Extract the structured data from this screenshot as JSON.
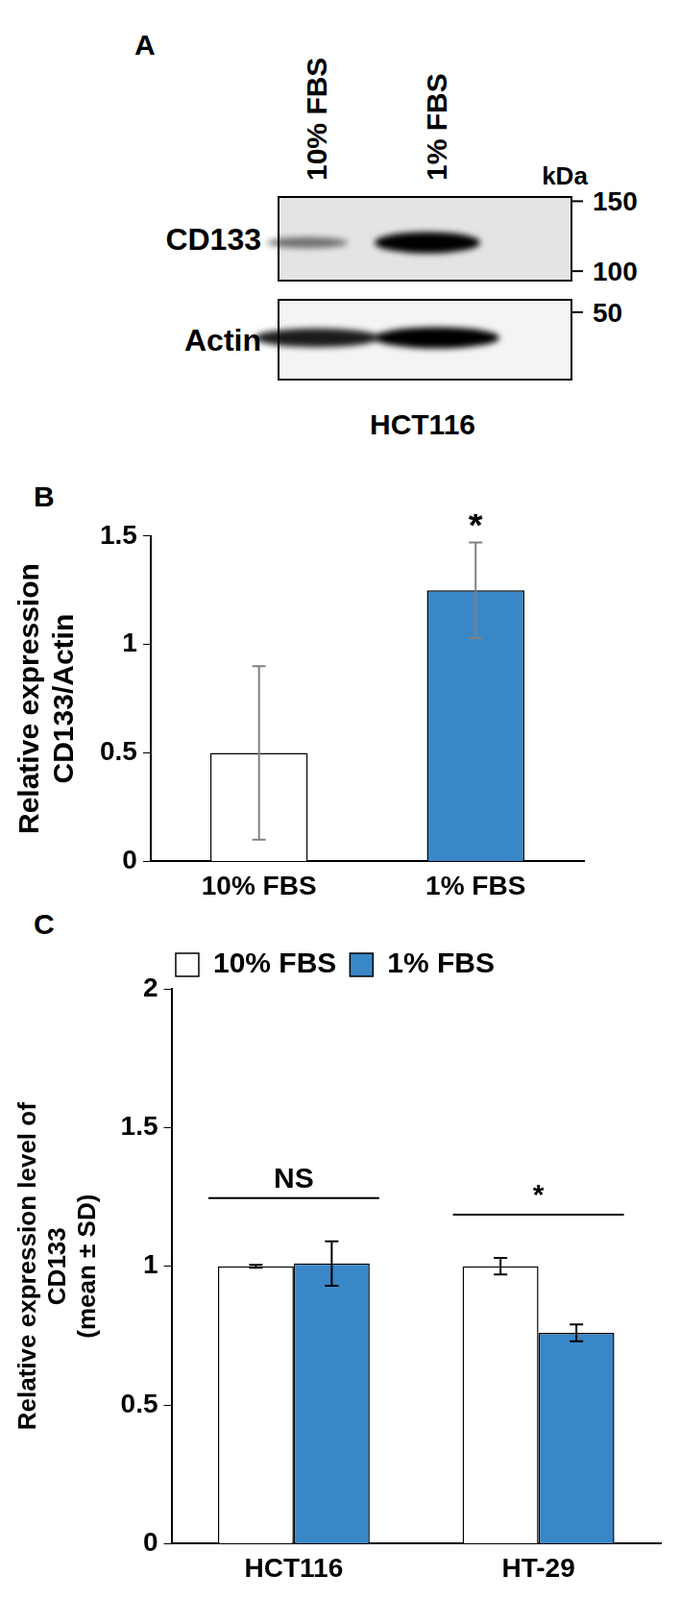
{
  "blot": {
    "panel": "A",
    "lanes": [
      "10% FBS",
      "1% FBS"
    ],
    "unit": "kDa",
    "cell_line": "HCT116",
    "rows": [
      {
        "label": "CD133",
        "markers": [
          150,
          100
        ],
        "intensity": [
          0.35,
          1
        ]
      },
      {
        "label": "Actin",
        "markers": [
          50
        ],
        "intensity": [
          0.85,
          1
        ]
      }
    ]
  },
  "chart_data": [
    {
      "panel": "B",
      "type": "bar",
      "categories": [
        "10% FBS",
        "1% FBS"
      ],
      "values": [
        0.5,
        1.25
      ],
      "errors": [
        0.4,
        0.22
      ],
      "colors": [
        "#ffffff",
        "#3a87c8"
      ],
      "ylabel": [
        "Relative expression",
        "CD133/Actin"
      ],
      "ylim": [
        0,
        1.5
      ],
      "yticks": [
        0,
        0.5,
        1,
        1.5
      ],
      "grid": false,
      "annotations": [
        {
          "text": "*",
          "category": "1% FBS"
        }
      ]
    },
    {
      "panel": "C",
      "type": "bar",
      "categories": [
        "HCT116",
        "HT-29"
      ],
      "series": [
        {
          "name": "10% FBS",
          "color": "#ffffff",
          "values": [
            1,
            1
          ],
          "errors": [
            0.005,
            0.03
          ]
        },
        {
          "name": "1% FBS",
          "color": "#3a87c8",
          "values": [
            1.01,
            0.76
          ],
          "errors": [
            0.08,
            0.03
          ]
        }
      ],
      "ylabel": [
        "Relative expression level of",
        "CD133",
        "(mean ± SD)"
      ],
      "ylim": [
        0,
        2
      ],
      "yticks": [
        0,
        0.5,
        1,
        1.5,
        2
      ],
      "legend": "top",
      "grid": false,
      "annotations": [
        {
          "text": "NS",
          "category": "HCT116"
        },
        {
          "text": "*",
          "category": "HT-29"
        }
      ]
    }
  ]
}
